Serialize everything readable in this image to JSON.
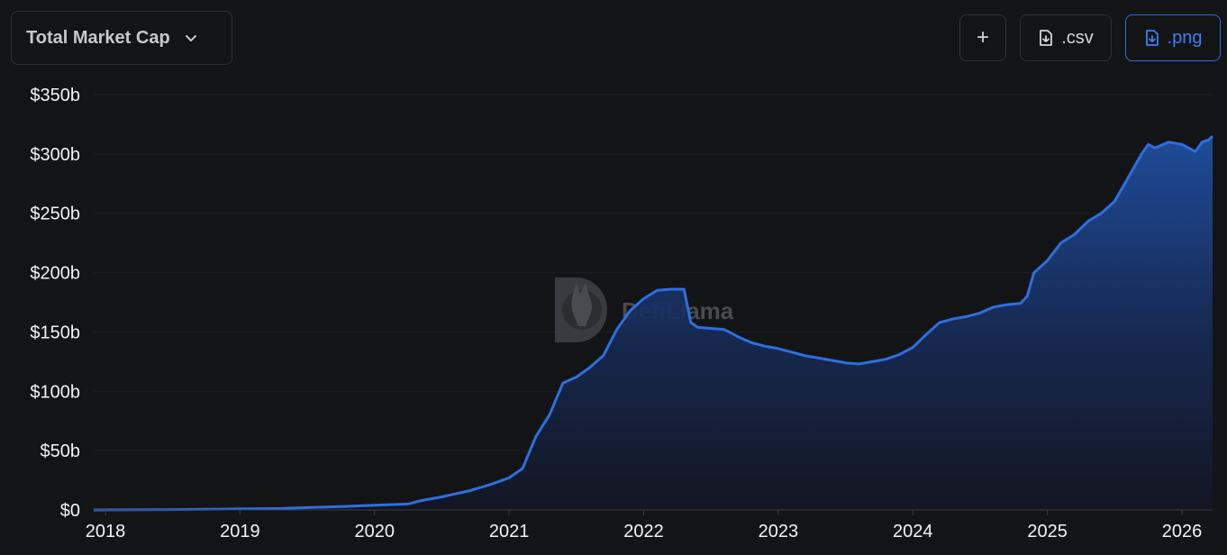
{
  "controls": {
    "metric_label": "Total Market Cap",
    "add_label": "+",
    "csv_label": ".csv",
    "png_label": ".png"
  },
  "watermark": "DefiLlama",
  "colors": {
    "background": "#131416",
    "line": "#2f6ee0",
    "area_top": "#1f4fa0",
    "grid": "#1d1f23",
    "accent": "#3b82f6"
  },
  "chart_data": {
    "type": "area",
    "title": "",
    "xlabel": "",
    "ylabel": "",
    "ylim": [
      0,
      350
    ],
    "xlim": [
      2018.0,
      2026.25
    ],
    "y_ticks": [
      0,
      50,
      100,
      150,
      200,
      250,
      300,
      350
    ],
    "y_tick_labels": [
      "$0",
      "$50b",
      "$100b",
      "$150b",
      "$200b",
      "$250b",
      "$300b",
      "$350b"
    ],
    "x_ticks": [
      2018,
      2019,
      2020,
      2021,
      2022,
      2023,
      2024,
      2025,
      2026
    ],
    "x_tick_labels": [
      "2018",
      "2019",
      "2020",
      "2021",
      "2022",
      "2023",
      "2024",
      "2025",
      "2026"
    ],
    "grid": true,
    "legend": "none",
    "series": [
      {
        "x": [
          2017.9,
          2018.5,
          2019.0,
          2019.3,
          2019.5,
          2019.8,
          2020.0,
          2020.25,
          2020.35,
          2020.5,
          2020.7,
          2020.85,
          2021.0,
          2021.1,
          2021.2,
          2021.3,
          2021.4,
          2021.5,
          2021.6,
          2021.7,
          2021.8,
          2021.9,
          2022.0,
          2022.1,
          2022.2,
          2022.3,
          2022.35,
          2022.4,
          2022.5,
          2022.6,
          2022.7,
          2022.8,
          2022.9,
          2023.0,
          2023.1,
          2023.2,
          2023.3,
          2023.4,
          2023.5,
          2023.6,
          2023.7,
          2023.8,
          2023.9,
          2024.0,
          2024.1,
          2024.2,
          2024.3,
          2024.4,
          2024.5,
          2024.6,
          2024.7,
          2024.8,
          2024.85,
          2024.9,
          2025.0,
          2025.1,
          2025.2,
          2025.3,
          2025.4,
          2025.5,
          2025.6,
          2025.7,
          2025.75,
          2025.8,
          2025.9,
          2026.0,
          2026.1,
          2026.15,
          2026.2,
          2026.25
        ],
        "values": [
          0,
          0.3,
          0.8,
          1.2,
          2,
          3,
          4,
          5,
          8,
          11,
          16,
          21,
          27,
          35,
          62,
          80,
          107,
          112,
          120,
          130,
          152,
          168,
          178,
          185,
          186,
          186,
          158,
          154,
          153,
          152,
          146,
          141,
          138,
          136,
          133,
          130,
          128,
          126,
          124,
          123,
          125,
          127,
          131,
          137,
          148,
          158,
          161,
          163,
          166,
          171,
          173,
          174,
          180,
          200,
          210,
          225,
          232,
          243,
          250,
          260,
          280,
          300,
          308,
          305,
          310,
          308,
          302,
          310,
          312,
          315
        ]
      }
    ]
  }
}
